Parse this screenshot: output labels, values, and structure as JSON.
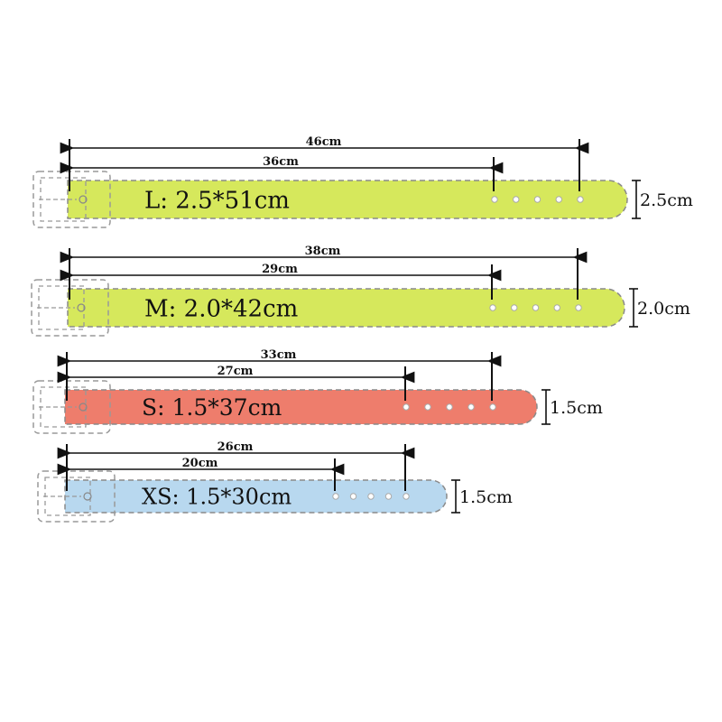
{
  "belts": [
    {
      "label": "L: 2.5*51cm",
      "outer": "46cm",
      "inner": "36cm",
      "width_label": "2.5cm",
      "color": "#d6e85c"
    },
    {
      "label": "M: 2.0*42cm",
      "outer": "38cm",
      "inner": "29cm",
      "width_label": "2.0cm",
      "color": "#d6e85c"
    },
    {
      "label": "S: 1.5*37cm",
      "outer": "33cm",
      "inner": "27cm",
      "width_label": "1.5cm",
      "color": "#ee7d6c"
    },
    {
      "label": "XS: 1.5*30cm",
      "outer": "26cm",
      "inner": "20cm",
      "width_label": "1.5cm",
      "color": "#b8d8ef"
    }
  ]
}
